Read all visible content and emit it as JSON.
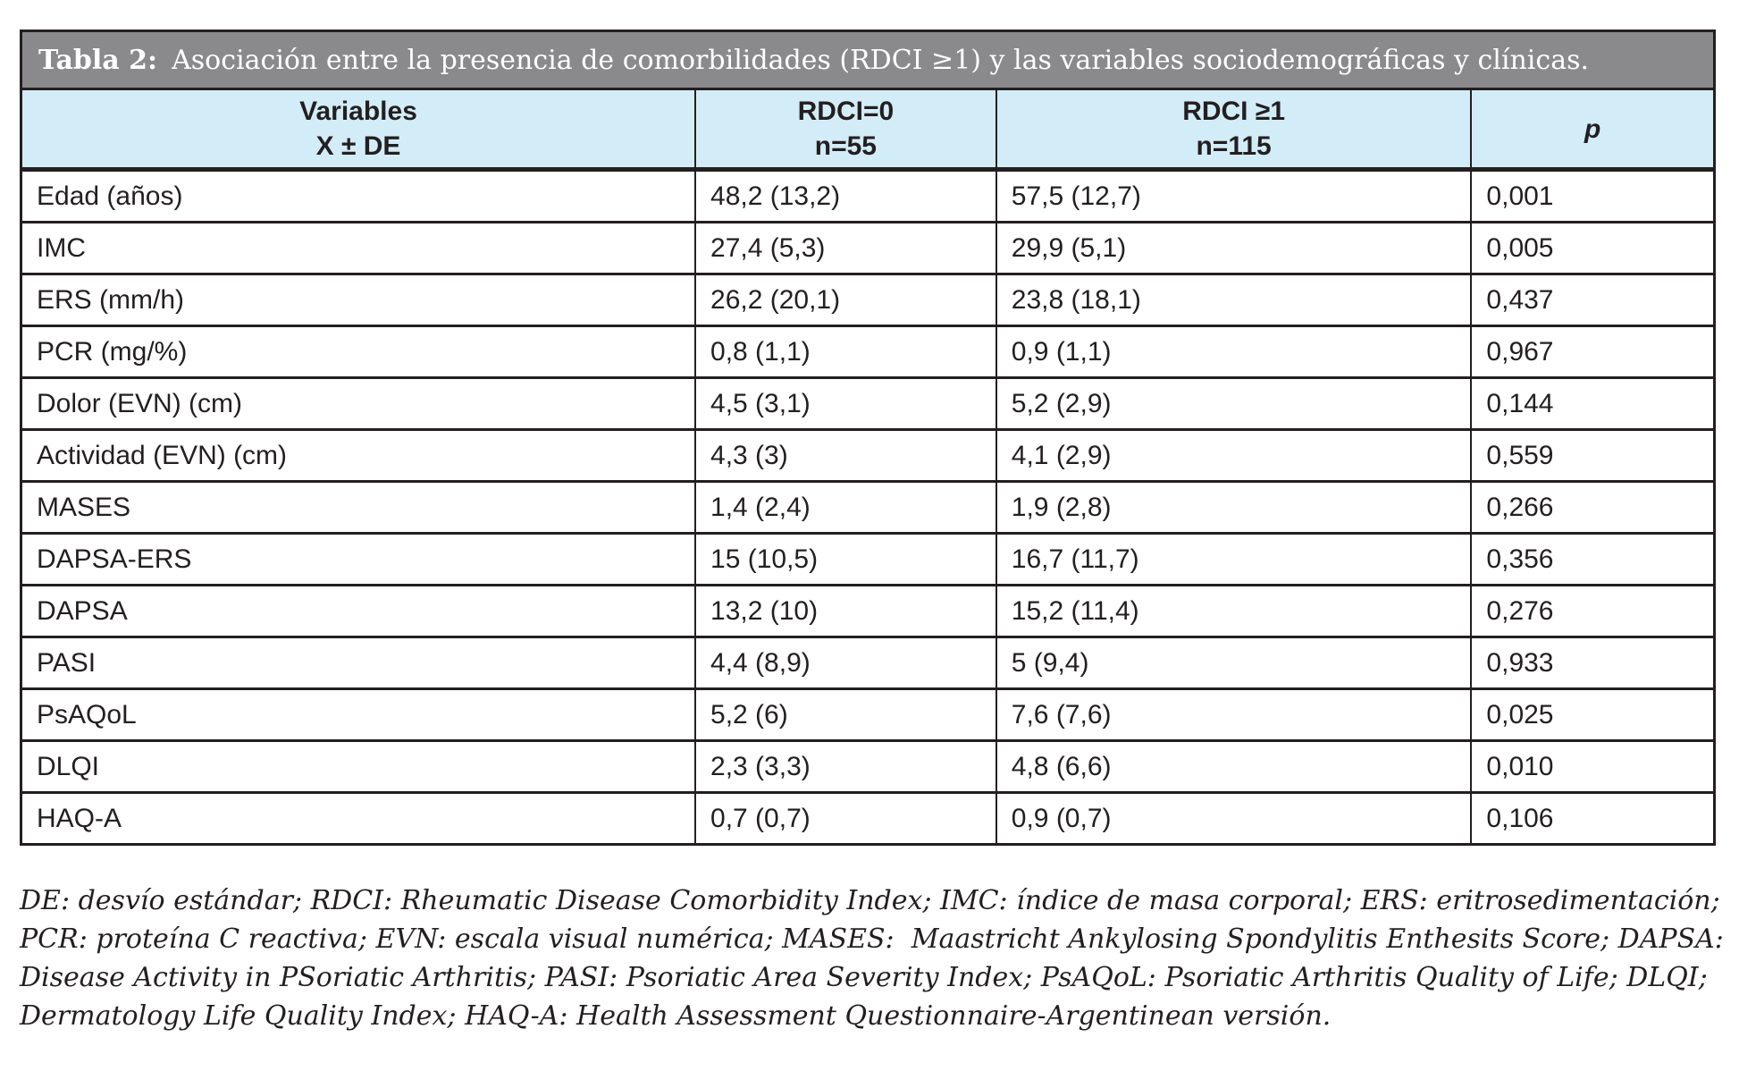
{
  "table": {
    "title": {
      "label": "Tabla 2:",
      "text": "Asociación entre la presencia de comorbilidades (RDCI ≥1) y las variables sociodemográficas y clínicas."
    },
    "columns": [
      {
        "line1": "Variables",
        "line2": "X ± DE"
      },
      {
        "line1": "RDCI=0",
        "line2": "n=55"
      },
      {
        "line1": "RDCI ≥1",
        "line2": "n=115"
      },
      {
        "line1": "p",
        "line2": ""
      }
    ],
    "rows": [
      {
        "variable": "Edad (años)",
        "rdci0": "48,2 (13,2)",
        "rdci1": "57,5 (12,7)",
        "p": "0,001"
      },
      {
        "variable": "IMC",
        "rdci0": "27,4 (5,3)",
        "rdci1": "29,9 (5,1)",
        "p": "0,005"
      },
      {
        "variable": "ERS (mm/h)",
        "rdci0": "26,2 (20,1)",
        "rdci1": "23,8 (18,1)",
        "p": "0,437"
      },
      {
        "variable": "PCR (mg/%)",
        "rdci0": "0,8 (1,1)",
        "rdci1": "0,9 (1,1)",
        "p": "0,967"
      },
      {
        "variable": "Dolor (EVN) (cm)",
        "rdci0": "4,5 (3,1)",
        "rdci1": "5,2 (2,9)",
        "p": "0,144"
      },
      {
        "variable": "Actividad (EVN) (cm)",
        "rdci0": "4,3 (3)",
        "rdci1": "4,1 (2,9)",
        "p": "0,559"
      },
      {
        "variable": "MASES",
        "rdci0": "1,4 (2,4)",
        "rdci1": "1,9 (2,8)",
        "p": "0,266"
      },
      {
        "variable": "DAPSA-ERS",
        "rdci0": "15 (10,5)",
        "rdci1": "16,7 (11,7)",
        "p": "0,356"
      },
      {
        "variable": "DAPSA",
        "rdci0": "13,2 (10)",
        "rdci1": "15,2 (11,4)",
        "p": "0,276"
      },
      {
        "variable": "PASI",
        "rdci0": "4,4 (8,9)",
        "rdci1": "5 (9,4)",
        "p": "0,933"
      },
      {
        "variable": "PsAQoL",
        "rdci0": "5,2 (6)",
        "rdci1": "7,6 (7,6)",
        "p": "0,025"
      },
      {
        "variable": "DLQI",
        "rdci0": "2,3 (3,3)",
        "rdci1": "4,8 (6,6)",
        "p": "0,010"
      },
      {
        "variable": "HAQ-A",
        "rdci0": "0,7 (0,7)",
        "rdci1": "0,9 (0,7)",
        "p": "0,106"
      }
    ]
  },
  "footnote": {
    "lines": [
      "DE: desvío estándar; RDCI: Rheumatic Disease Comorbidity Index; IMC: índice de masa corporal; ERS: eritrosedimentación;",
      "PCR: proteína C reactiva; EVN: escala visual numérica; MASES:  Maastricht Ankylosing Spondylitis Enthesits Score; DAPSA:",
      "Disease Activity in PSoriatic Arthritis; PASI: Psoriatic Area Severity Index; PsAQoL: Psoriatic Arthritis Quality of Life; DLQI;",
      "Dermatology Life Quality Index; HAQ-A: Health Assessment Questionnaire-Argentinean versión."
    ]
  },
  "colors": {
    "title_bar_gray": "#8a8a8d",
    "header_blue": "#d3edf8",
    "border_dark": "#231f20",
    "title_text": "#ffffff",
    "body_text": "#231f20"
  }
}
